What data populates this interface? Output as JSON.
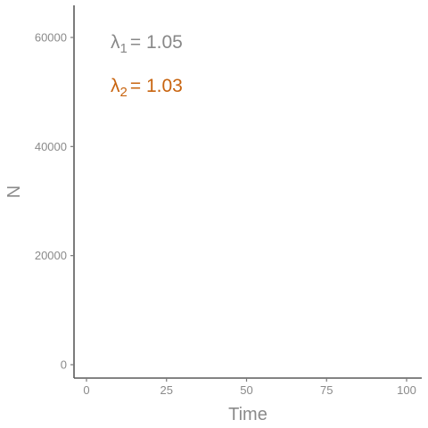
{
  "chart_data": {
    "type": "line",
    "title": "",
    "xlabel": "Time",
    "ylabel": "N",
    "xlim": [
      -4,
      104
    ],
    "ylim": [
      -3100,
      66000
    ],
    "x_ticks": [
      0,
      25,
      50,
      75,
      100
    ],
    "y_ticks": [
      0,
      20000,
      40000,
      60000
    ],
    "grid": false,
    "series": [
      {
        "name": "λ1",
        "label_base": "λ",
        "label_sub": "1",
        "label_value": "= 1.05",
        "color": "#888888",
        "values": []
      },
      {
        "name": "λ2",
        "label_base": "λ",
        "label_sub": "2",
        "label_value": "= 1.03",
        "color": "#c8640f",
        "values": []
      }
    ]
  }
}
